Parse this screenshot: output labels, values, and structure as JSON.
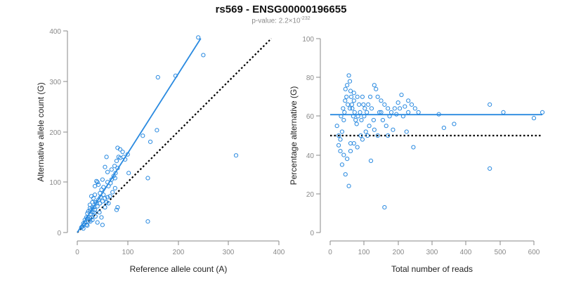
{
  "header": {
    "title": "rs569 - ENSG00000196655",
    "pvalue_prefix": "p-value: 2.2×10",
    "pvalue_exponent": "-232"
  },
  "colors": {
    "points": "#2a8ae0",
    "fit_line": "#2a8ae0",
    "reference_line": "#000000",
    "axis": "#8a8a8a"
  },
  "chart_data": [
    {
      "type": "scatter",
      "xlabel": "Reference allele count (A)",
      "ylabel": "Alternative allele count (G)",
      "xlim": [
        0,
        400
      ],
      "ylim": [
        0,
        400
      ],
      "xticks": [
        "0",
        "100",
        "200",
        "300",
        "400"
      ],
      "yticks": [
        "0",
        "100",
        "200",
        "300",
        "400"
      ],
      "fit_line": [
        [
          0,
          0
        ],
        [
          245,
          385
        ]
      ],
      "reference_line": [
        [
          0,
          0
        ],
        [
          385,
          385
        ]
      ],
      "points": [
        [
          240,
          387
        ],
        [
          250,
          352
        ],
        [
          195,
          311
        ],
        [
          160,
          308
        ],
        [
          158,
          203
        ],
        [
          145,
          180
        ],
        [
          130,
          192
        ],
        [
          315,
          153
        ],
        [
          140,
          108
        ],
        [
          140,
          22
        ],
        [
          102,
          118
        ],
        [
          100,
          155
        ],
        [
          90,
          160
        ],
        [
          85,
          165
        ],
        [
          80,
          168
        ],
        [
          92,
          150
        ],
        [
          78,
          142
        ],
        [
          80,
          128
        ],
        [
          75,
          108
        ],
        [
          60,
          120
        ],
        [
          60,
          100
        ],
        [
          58,
          150
        ],
        [
          55,
          130
        ],
        [
          50,
          105
        ],
        [
          52,
          90
        ],
        [
          48,
          85
        ],
        [
          45,
          78
        ],
        [
          42,
          95
        ],
        [
          40,
          100
        ],
        [
          38,
          102
        ],
        [
          35,
          92
        ],
        [
          35,
          75
        ],
        [
          32,
          68
        ],
        [
          30,
          60
        ],
        [
          28,
          72
        ],
        [
          25,
          55
        ],
        [
          25,
          48
        ],
        [
          22,
          42
        ],
        [
          20,
          38
        ],
        [
          18,
          30
        ],
        [
          15,
          25
        ],
        [
          12,
          18
        ],
        [
          10,
          12
        ],
        [
          8,
          10
        ],
        [
          12,
          8
        ],
        [
          18,
          15
        ],
        [
          22,
          22
        ],
        [
          28,
          30
        ],
        [
          30,
          40
        ],
        [
          35,
          45
        ],
        [
          40,
          52
        ],
        [
          45,
          58
        ],
        [
          50,
          62
        ],
        [
          55,
          68
        ],
        [
          60,
          70
        ],
        [
          65,
          72
        ],
        [
          70,
          80
        ],
        [
          75,
          88
        ],
        [
          62,
          92
        ],
        [
          66,
          98
        ],
        [
          68,
          105
        ],
        [
          72,
          112
        ],
        [
          68,
          125
        ],
        [
          74,
          132
        ],
        [
          76,
          118
        ],
        [
          82,
          150
        ],
        [
          85,
          148
        ],
        [
          95,
          145
        ],
        [
          42,
          65
        ],
        [
          38,
          58
        ],
        [
          33,
          50
        ],
        [
          27,
          36
        ],
        [
          24,
          30
        ],
        [
          20,
          28
        ],
        [
          16,
          20
        ],
        [
          14,
          16
        ],
        [
          20,
          14
        ],
        [
          26,
          22
        ],
        [
          30,
          25
        ],
        [
          36,
          32
        ],
        [
          44,
          40
        ],
        [
          50,
          15
        ],
        [
          48,
          30
        ],
        [
          40,
          20
        ],
        [
          80,
          50
        ],
        [
          78,
          45
        ],
        [
          55,
          50
        ],
        [
          58,
          60
        ],
        [
          62,
          58
        ],
        [
          52,
          75
        ],
        [
          46,
          70
        ],
        [
          36,
          60
        ],
        [
          34,
          40
        ],
        [
          30,
          50
        ],
        [
          26,
          44
        ]
      ]
    },
    {
      "type": "scatter",
      "xlabel": "Total number of reads",
      "ylabel": "Percentage alternative (G)",
      "xlim": [
        0,
        600
      ],
      "ylim": [
        0,
        100
      ],
      "xticks": [
        "0",
        "100",
        "200",
        "300",
        "400",
        "500",
        "600"
      ],
      "yticks": [
        "0",
        "20",
        "40",
        "60",
        "80",
        "100"
      ],
      "fit_line": [
        [
          0,
          60.8
        ],
        [
          625,
          60.8
        ]
      ],
      "reference_line": [
        [
          0,
          50
        ],
        [
          625,
          50
        ]
      ],
      "points": [
        [
          55,
          81
        ],
        [
          58,
          78
        ],
        [
          50,
          76
        ],
        [
          60,
          73
        ],
        [
          45,
          74
        ],
        [
          48,
          70
        ],
        [
          62,
          70
        ],
        [
          70,
          72
        ],
        [
          80,
          70
        ],
        [
          130,
          76
        ],
        [
          135,
          74
        ],
        [
          140,
          70
        ],
        [
          150,
          68
        ],
        [
          160,
          66
        ],
        [
          170,
          64
        ],
        [
          180,
          62
        ],
        [
          190,
          64
        ],
        [
          200,
          67
        ],
        [
          210,
          71
        ],
        [
          220,
          65
        ],
        [
          230,
          62
        ],
        [
          240,
          66
        ],
        [
          250,
          64
        ],
        [
          260,
          62
        ],
        [
          20,
          55
        ],
        [
          25,
          50
        ],
        [
          30,
          48
        ],
        [
          35,
          52
        ],
        [
          40,
          58
        ],
        [
          42,
          62
        ],
        [
          65,
          64
        ],
        [
          68,
          60
        ],
        [
          72,
          62
        ],
        [
          75,
          58
        ],
        [
          78,
          56
        ],
        [
          82,
          60
        ],
        [
          88,
          62
        ],
        [
          92,
          58
        ],
        [
          98,
          66
        ],
        [
          102,
          64
        ],
        [
          108,
          62
        ],
        [
          112,
          66
        ],
        [
          118,
          70
        ],
        [
          122,
          64
        ],
        [
          128,
          58
        ],
        [
          145,
          62
        ],
        [
          155,
          58
        ],
        [
          165,
          55
        ],
        [
          175,
          60
        ],
        [
          195,
          61
        ],
        [
          215,
          60
        ],
        [
          225,
          52
        ],
        [
          245,
          44
        ],
        [
          160,
          13
        ],
        [
          140,
          50
        ],
        [
          90,
          50
        ],
        [
          110,
          50
        ],
        [
          60,
          46
        ],
        [
          40,
          40
        ],
        [
          30,
          42
        ],
        [
          25,
          45
        ],
        [
          35,
          35
        ],
        [
          45,
          30
        ],
        [
          55,
          24
        ],
        [
          50,
          38
        ],
        [
          60,
          42
        ],
        [
          70,
          46
        ],
        [
          80,
          44
        ],
        [
          95,
          48
        ],
        [
          105,
          52
        ],
        [
          115,
          55
        ],
        [
          120,
          37
        ],
        [
          130,
          53
        ],
        [
          170,
          50
        ],
        [
          185,
          53
        ],
        [
          320,
          61
        ],
        [
          335,
          54
        ],
        [
          365,
          56
        ],
        [
          470,
          66
        ],
        [
          470,
          33
        ],
        [
          510,
          62
        ],
        [
          600,
          59
        ],
        [
          625,
          62
        ],
        [
          32,
          60
        ],
        [
          38,
          64
        ],
        [
          44,
          68
        ],
        [
          52,
          66
        ],
        [
          58,
          64
        ],
        [
          64,
          66
        ],
        [
          70,
          68
        ],
        [
          85,
          66
        ],
        [
          95,
          70
        ],
        [
          100,
          60
        ],
        [
          150,
          62
        ],
        [
          205,
          64
        ],
        [
          230,
          68
        ]
      ]
    }
  ]
}
